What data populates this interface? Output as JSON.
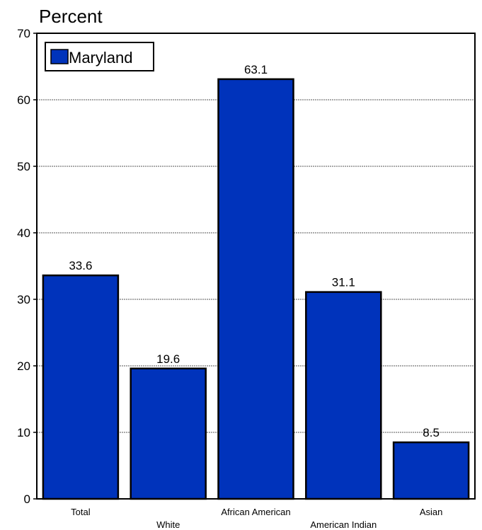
{
  "chart_data": {
    "type": "bar",
    "ylabel": "Percent",
    "xlabel": "",
    "title": "",
    "ylim": [
      0,
      70
    ],
    "yticks": [
      0,
      10,
      20,
      30,
      40,
      50,
      60,
      70
    ],
    "grid": true,
    "legend_position": "top-left",
    "categories": [
      "Total",
      "White",
      "African American",
      "American Indian",
      "Asian"
    ],
    "series": [
      {
        "name": "Maryland",
        "values": [
          33.6,
          19.6,
          63.1,
          31.1,
          8.5
        ],
        "color": "#0033bb"
      }
    ],
    "data_labels": [
      "33.6",
      "19.6",
      "63.1",
      "31.1",
      "8.5"
    ]
  }
}
